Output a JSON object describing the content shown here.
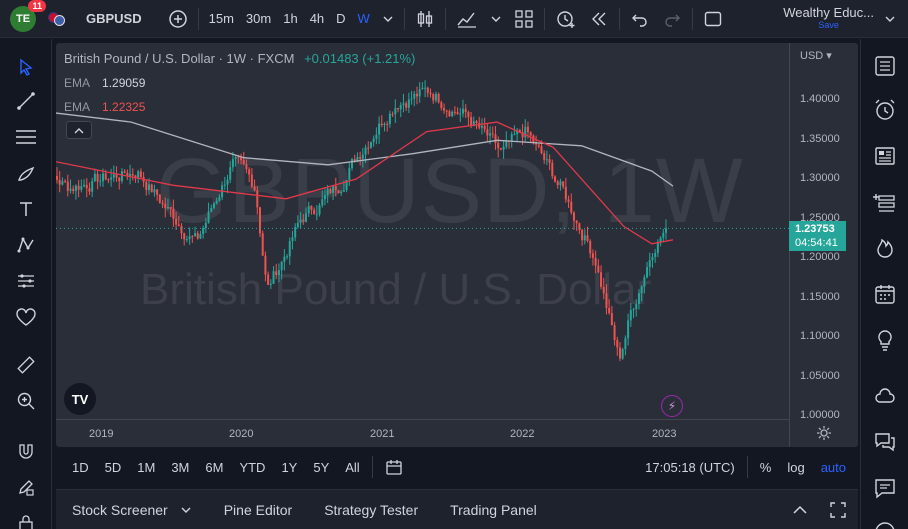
{
  "header": {
    "avatar_initials": "TE",
    "notification_count": "11",
    "symbol": "GBPUSD",
    "intervals": [
      "15m",
      "30m",
      "1h",
      "4h",
      "D",
      "W"
    ],
    "active_interval": "W",
    "layout_name": "Wealthy Educ...",
    "save_label": "Save"
  },
  "chart": {
    "legend_title": "British Pound / U.S. Dollar · 1W · FXCM",
    "legend_change": "+0.01483 (+1.21%)",
    "ema_label": "EMA",
    "ema1_value": "1.29059",
    "ema2_value": "1.22325",
    "watermark_symbol": "GBPUSD, 1W",
    "watermark_name": "British Pound / U.S. Dollar",
    "price_unit": "USD",
    "last_price": "1.23753",
    "countdown": "04:54:41",
    "time_ticks": [
      "2019",
      "2020",
      "2021",
      "2022",
      "2023"
    ],
    "colors": {
      "up": "#26a69a",
      "down": "#ef5350",
      "ema_slow": "#b2b5be",
      "ema_fast": "#e0394a"
    }
  },
  "chart_data": {
    "type": "candlestick",
    "title": "British Pound / U.S. Dollar · 1W · FXCM",
    "xlabel": "",
    "ylabel": "USD",
    "ylim": [
      1.0,
      1.42
    ],
    "x_ticks": [
      "2019",
      "2020",
      "2021",
      "2022",
      "2023"
    ],
    "y_ticks": [
      1.4,
      1.35,
      1.3,
      1.25,
      1.2,
      1.15,
      1.1,
      1.05,
      1.0
    ],
    "close_path": [
      [
        "2018-07",
        1.32
      ],
      [
        "2018-10",
        1.29
      ],
      [
        "2019-01",
        1.3
      ],
      [
        "2019-04",
        1.31
      ],
      [
        "2019-06",
        1.27
      ],
      [
        "2019-09",
        1.22
      ],
      [
        "2019-12",
        1.32
      ],
      [
        "2020-02",
        1.29
      ],
      [
        "2020-03",
        1.16
      ],
      [
        "2020-06",
        1.25
      ],
      [
        "2020-09",
        1.29
      ],
      [
        "2020-12",
        1.36
      ],
      [
        "2021-02",
        1.4
      ],
      [
        "2021-05",
        1.41
      ],
      [
        "2021-08",
        1.38
      ],
      [
        "2021-11",
        1.33
      ],
      [
        "2022-01",
        1.36
      ],
      [
        "2022-04",
        1.29
      ],
      [
        "2022-07",
        1.2
      ],
      [
        "2022-09",
        1.07
      ],
      [
        "2022-10",
        1.13
      ],
      [
        "2022-12",
        1.22
      ],
      [
        "2023-01",
        1.237
      ]
    ],
    "series": [
      {
        "name": "EMA",
        "value": 1.29059,
        "values": [
          [
            2018.55,
            1.386
          ],
          [
            2019.2,
            1.372
          ],
          [
            2020,
            1.327
          ],
          [
            2020.6,
            1.318
          ],
          [
            2021.2,
            1.332
          ],
          [
            2021.8,
            1.349
          ],
          [
            2022.4,
            1.342
          ],
          [
            2022.9,
            1.31
          ],
          [
            2023.05,
            1.291
          ]
        ]
      },
      {
        "name": "EMA",
        "value": 1.22325,
        "values": [
          [
            2018.55,
            1.326
          ],
          [
            2019.5,
            1.292
          ],
          [
            2020.3,
            1.275
          ],
          [
            2020.8,
            1.3
          ],
          [
            2021.3,
            1.36
          ],
          [
            2021.8,
            1.372
          ],
          [
            2022.2,
            1.34
          ],
          [
            2022.7,
            1.24
          ],
          [
            2022.9,
            1.218
          ],
          [
            2023.05,
            1.223
          ]
        ]
      }
    ],
    "last_price": 1.23753
  },
  "range": {
    "buttons": [
      "1D",
      "5D",
      "1M",
      "3M",
      "6M",
      "YTD",
      "1Y",
      "5Y",
      "All"
    ],
    "clock": "17:05:18 (UTC)",
    "pct": "%",
    "log": "log",
    "auto": "auto"
  },
  "bottom": {
    "tabs": [
      "Stock Screener",
      "Pine Editor",
      "Strategy Tester",
      "Trading Panel"
    ]
  }
}
